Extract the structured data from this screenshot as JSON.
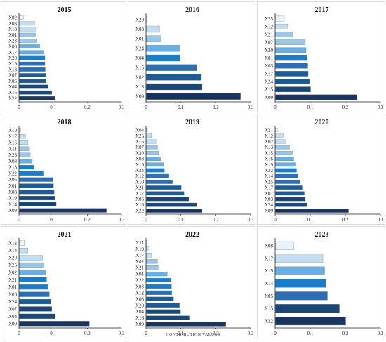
{
  "chart_data": [
    {
      "type": "bar",
      "orientation": "horizontal",
      "title": "2015",
      "categories": [
        "X02",
        "X03",
        "X13",
        "X01",
        "X23",
        "X08",
        "X17",
        "X20",
        "X19",
        "X18",
        "X07",
        "X05",
        "X04",
        "X16",
        "X22"
      ],
      "values": [
        0.012,
        0.045,
        0.047,
        0.05,
        0.052,
        0.06,
        0.072,
        0.075,
        0.075,
        0.076,
        0.077,
        0.078,
        0.085,
        0.095,
        0.105
      ],
      "xticks": [
        "0",
        "0.1",
        "0.2",
        "0.3"
      ],
      "xlim": [
        0,
        0.3
      ]
    },
    {
      "type": "bar",
      "orientation": "horizontal",
      "title": "2016",
      "categories": [
        "X20",
        "X03",
        "X01",
        "X24",
        "X04",
        "X15",
        "X02",
        "X13",
        "X09"
      ],
      "values": [
        0.001,
        0.038,
        0.043,
        0.095,
        0.097,
        0.145,
        0.158,
        0.16,
        0.27
      ],
      "xticks": [
        "0",
        "0.1",
        "0.2",
        "0.3"
      ],
      "xlim": [
        0,
        0.3
      ]
    },
    {
      "type": "bar",
      "orientation": "horizontal",
      "title": "2017",
      "categories": [
        "X25",
        "X12",
        "X21",
        "X02",
        "X20",
        "X01",
        "X03",
        "X17",
        "X24",
        "X15",
        "X09"
      ],
      "values": [
        0.025,
        0.035,
        0.048,
        0.085,
        0.087,
        0.09,
        0.092,
        0.093,
        0.097,
        0.1,
        0.232
      ],
      "xticks": [
        "0",
        "0.1",
        "0.2",
        "0.3"
      ],
      "xlim": [
        0,
        0.3
      ]
    },
    {
      "type": "bar",
      "orientation": "horizontal",
      "title": "2018",
      "categories": [
        "X10",
        "X17",
        "X16",
        "X11",
        "X23",
        "X08",
        "X18",
        "X22",
        "X06",
        "X01",
        "X03",
        "X19",
        "X14",
        "X09"
      ],
      "values": [
        0.004,
        0.018,
        0.025,
        0.03,
        0.032,
        0.038,
        0.043,
        0.07,
        0.098,
        0.1,
        0.102,
        0.105,
        0.108,
        0.255
      ],
      "xticks": [
        "0",
        "0.1",
        "0.2",
        "0.3"
      ],
      "xlim": [
        0,
        0.3
      ]
    },
    {
      "type": "bar",
      "orientation": "horizontal",
      "title": "2019",
      "categories": [
        "X04",
        "X25",
        "X15",
        "X07",
        "X20",
        "X08",
        "X19",
        "X24",
        "X12",
        "X10",
        "X21",
        "X17",
        "X05",
        "X16",
        "X22"
      ],
      "values": [
        0.003,
        0.015,
        0.03,
        0.032,
        0.035,
        0.042,
        0.05,
        0.052,
        0.065,
        0.075,
        0.1,
        0.108,
        0.122,
        0.145,
        0.16
      ],
      "xticks": [
        "0",
        "0.1",
        "0.2",
        "0.3"
      ],
      "xlim": [
        0,
        0.3
      ]
    },
    {
      "type": "bar",
      "orientation": "horizontal",
      "title": "2020",
      "categories": [
        "X21",
        "X12",
        "X02",
        "X13",
        "X15",
        "X16",
        "X19",
        "X22",
        "X14",
        "X25",
        "X17",
        "X01",
        "X03",
        "X24",
        "X09"
      ],
      "values": [
        0.007,
        0.022,
        0.03,
        0.04,
        0.048,
        0.052,
        0.058,
        0.06,
        0.063,
        0.07,
        0.078,
        0.082,
        0.085,
        0.09,
        0.208
      ],
      "xticks": [
        "0",
        "0.1",
        "0.2",
        "0.3"
      ],
      "xlim": [
        0,
        0.3
      ]
    },
    {
      "type": "bar",
      "orientation": "horizontal",
      "title": "2021",
      "categories": [
        "X12",
        "X14",
        "X20",
        "X25",
        "X02",
        "X21",
        "X01",
        "X03",
        "X24",
        "X07",
        "X04",
        "X09"
      ],
      "values": [
        0.015,
        0.025,
        0.068,
        0.07,
        0.078,
        0.08,
        0.085,
        0.088,
        0.092,
        0.095,
        0.105,
        0.205
      ],
      "xticks": [
        "0",
        "0.1",
        "0.2",
        "0.3"
      ],
      "xlim": [
        0,
        0.3
      ]
    },
    {
      "type": "bar",
      "orientation": "horizontal",
      "title": "2022",
      "categories": [
        "X11",
        "X19",
        "X17",
        "X02",
        "X21",
        "X01",
        "X22",
        "X03",
        "X12",
        "X08",
        "X20",
        "X04",
        "X16",
        "X09"
      ],
      "values": [
        0.002,
        0.008,
        0.015,
        0.032,
        0.034,
        0.06,
        0.07,
        0.072,
        0.073,
        0.078,
        0.095,
        0.098,
        0.125,
        0.228
      ],
      "xticks": [
        "0",
        "0.1",
        "0.2",
        "0.3"
      ],
      "xlim": [
        0,
        0.3
      ]
    },
    {
      "type": "bar",
      "orientation": "horizontal",
      "title": "2023",
      "categories": [
        "X08",
        "X17",
        "X19",
        "X14",
        "X05",
        "X15",
        "X22"
      ],
      "values": [
        0.052,
        0.135,
        0.14,
        0.143,
        0.148,
        0.182,
        0.2
      ],
      "xticks": [
        "0",
        "0.1",
        "0.2",
        "0.3"
      ],
      "xlim": [
        0,
        0.3
      ]
    }
  ],
  "shared_xlabel": "CONTRIBUTION VALUES",
  "colors": {
    "palette": [
      "#eaf2fb",
      "#c5ddf0",
      "#9cc6e6",
      "#6aaee2",
      "#1b7cc7",
      "#2d6db0",
      "#1f5b93",
      "#1c4775",
      "#1a3460"
    ],
    "border": "#d9d9d9",
    "axis": "#222222"
  }
}
